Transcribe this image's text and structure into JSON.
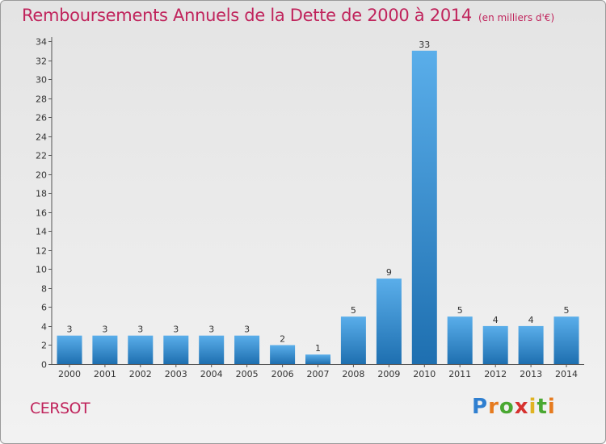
{
  "title": "Remboursements Annuels de la Dette de 2000 à 2014",
  "subtitle": "(en milliers d'€)",
  "commune": "CERSOT",
  "logo": {
    "text": "Proxiti"
  },
  "colors": {
    "title": "#c0245c",
    "bar_top": "#5aaeea",
    "bar_bottom": "#1e6fb0"
  },
  "chart_data": {
    "type": "bar",
    "title": "Remboursements Annuels de la Dette de 2000 à 2014",
    "subtitle": "(en milliers d'€)",
    "xlabel": "",
    "ylabel": "",
    "categories": [
      "2000",
      "2001",
      "2002",
      "2003",
      "2004",
      "2005",
      "2006",
      "2007",
      "2008",
      "2009",
      "2010",
      "2011",
      "2012",
      "2013",
      "2014"
    ],
    "values": [
      3,
      3,
      3,
      3,
      3,
      3,
      2,
      1,
      5,
      9,
      33,
      5,
      4,
      4,
      5
    ],
    "ylim": [
      0,
      34
    ],
    "yticks": [
      0,
      2,
      4,
      6,
      8,
      10,
      12,
      14,
      16,
      18,
      20,
      22,
      24,
      26,
      28,
      30,
      32,
      34
    ],
    "grid": false,
    "data_labels": true
  }
}
